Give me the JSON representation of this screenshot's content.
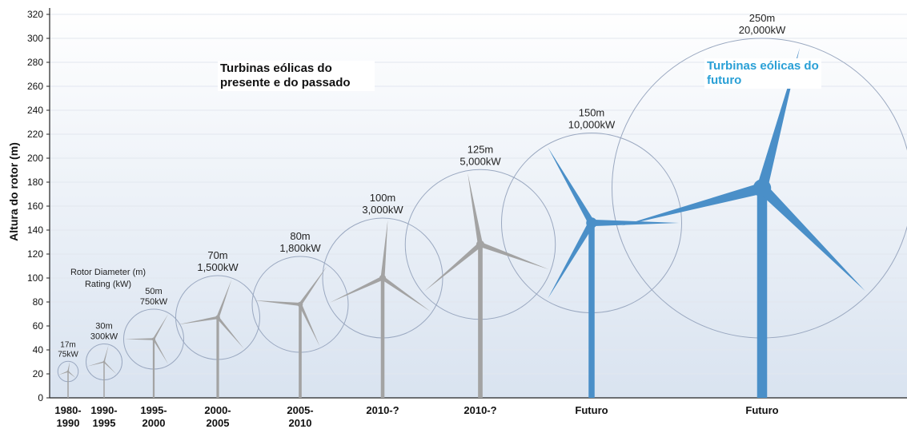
{
  "chart_data": {
    "type": "scatter",
    "ylabel": "Altura do rotor (m)",
    "ylim": [
      0,
      320
    ],
    "yticks": [
      0,
      20,
      40,
      60,
      80,
      100,
      120,
      140,
      160,
      180,
      200,
      220,
      240,
      260,
      280,
      300,
      320
    ],
    "legend_note": "Rotor Diameter (m)\nRating (kW)",
    "annotations": {
      "past": "Turbinas eólicas do presente e do passado",
      "future": "Turbinas eólicas do futuro"
    },
    "colors": {
      "past": "#a3a3a3",
      "future": "#4a8fc8",
      "circle": "#9aa8c0",
      "bg_top": "#ffffff",
      "bg_bottom": "#d9e3f0"
    },
    "turbines": [
      {
        "period": "1980-\n1990",
        "diameter_label": "17m",
        "rating_label": "75kW",
        "diameter_m": 17,
        "rating_kW": 75,
        "hub_height_m": 22,
        "future": false
      },
      {
        "period": "1990-\n1995",
        "diameter_label": "30m",
        "rating_label": "300kW",
        "diameter_m": 30,
        "rating_kW": 300,
        "hub_height_m": 30,
        "future": false
      },
      {
        "period": "1995-\n2000",
        "diameter_label": "50m",
        "rating_label": "750kW",
        "diameter_m": 50,
        "rating_kW": 750,
        "hub_height_m": 49,
        "future": false
      },
      {
        "period": "2000-\n2005",
        "diameter_label": "70m",
        "rating_label": "1,500kW",
        "diameter_m": 70,
        "rating_kW": 1500,
        "hub_height_m": 67,
        "future": false
      },
      {
        "period": "2005-\n2010",
        "diameter_label": "80m",
        "rating_label": "1,800kW",
        "diameter_m": 80,
        "rating_kW": 1800,
        "hub_height_m": 78,
        "future": false
      },
      {
        "period": "2010-?",
        "diameter_label": "100m",
        "rating_label": "3,000kW",
        "diameter_m": 100,
        "rating_kW": 3000,
        "hub_height_m": 100,
        "future": false
      },
      {
        "period": "2010-?",
        "diameter_label": "125m",
        "rating_label": "5,000kW",
        "diameter_m": 125,
        "rating_kW": 5000,
        "hub_height_m": 128,
        "future": false
      },
      {
        "period": "Futuro",
        "diameter_label": "150m",
        "rating_label": "10,000kW",
        "diameter_m": 150,
        "rating_kW": 10000,
        "hub_height_m": 146,
        "future": true
      },
      {
        "period": "Futuro",
        "diameter_label": "250m",
        "rating_label": "20,000kW",
        "diameter_m": 250,
        "rating_kW": 20000,
        "hub_height_m": 175,
        "future": true
      }
    ]
  }
}
